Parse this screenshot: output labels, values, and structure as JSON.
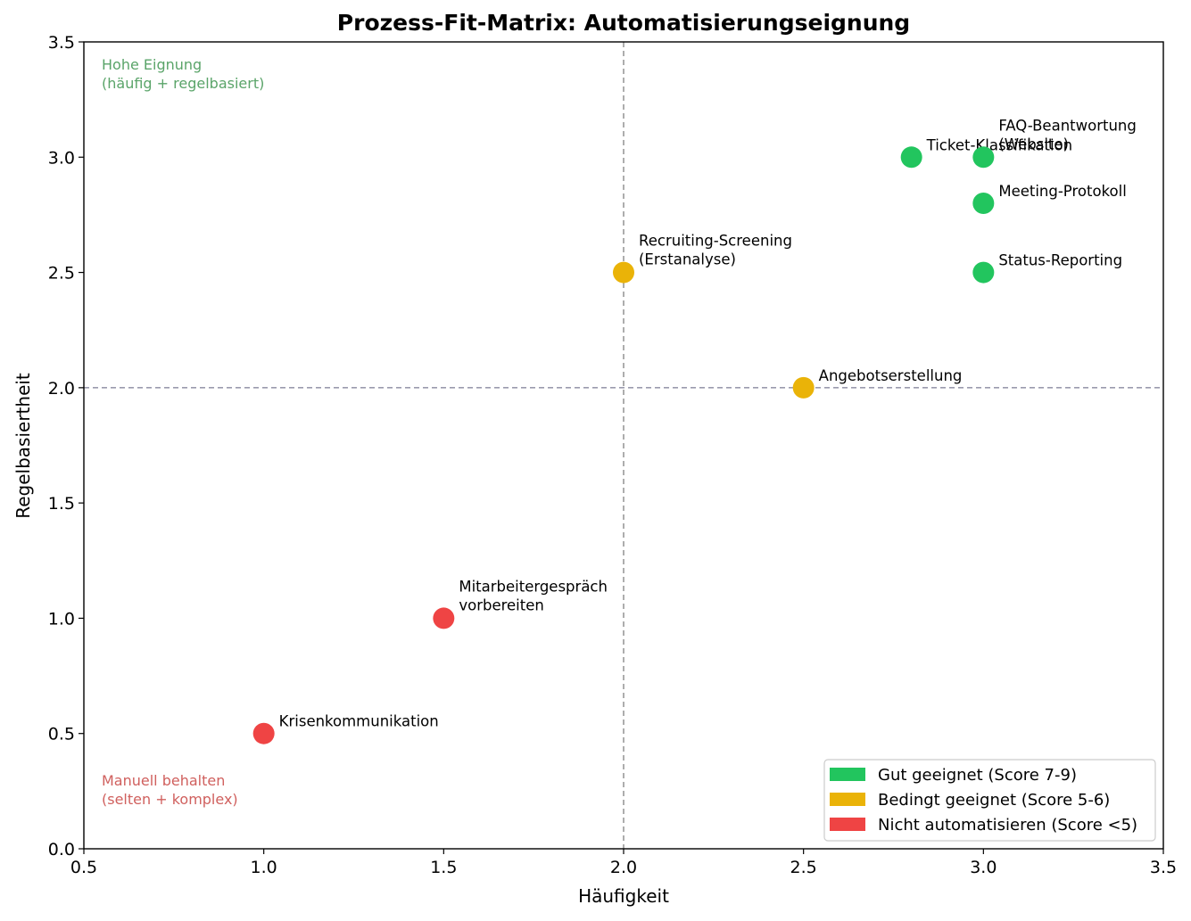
{
  "chart_data": {
    "type": "scatter",
    "title": "Prozess-Fit-Matrix: Automatisierungseignung",
    "xlabel": "Häufigkeit",
    "ylabel": "Regelbasiertheit",
    "xlim": [
      0.5,
      3.5
    ],
    "ylim": [
      0.0,
      3.5
    ],
    "xticks": [
      "0.5",
      "1.0",
      "1.5",
      "2.0",
      "2.5",
      "3.0",
      "3.5"
    ],
    "yticks": [
      "0.0",
      "0.5",
      "1.0",
      "1.5",
      "2.0",
      "2.5",
      "3.0",
      "3.5"
    ],
    "grid": false,
    "reference_lines": {
      "x": 2.0,
      "y": 2.0,
      "style": "dashed"
    },
    "legend_position": "lower-right",
    "categories": [
      {
        "key": "good",
        "name": "Gut geeignet (Score 7-9)",
        "color": "#22c55e"
      },
      {
        "key": "medium",
        "name": "Bedingt geeignet (Score 5-6)",
        "color": "#eab308"
      },
      {
        "key": "bad",
        "name": "Nicht automatisieren (Score <5)",
        "color": "#ef4444"
      }
    ],
    "points": [
      {
        "label": [
          "Ticket-Klassifikation"
        ],
        "x": 2.8,
        "y": 3.0,
        "category": "good"
      },
      {
        "label": [
          "FAQ-Beantwortung",
          "(Website)"
        ],
        "x": 3.0,
        "y": 3.0,
        "category": "good"
      },
      {
        "label": [
          "Meeting-Protokoll"
        ],
        "x": 3.0,
        "y": 2.8,
        "category": "good"
      },
      {
        "label": [
          "Status-Reporting"
        ],
        "x": 3.0,
        "y": 2.5,
        "category": "good"
      },
      {
        "label": [
          "Recruiting-Screening",
          "(Erstanalyse)"
        ],
        "x": 2.0,
        "y": 2.5,
        "category": "medium"
      },
      {
        "label": [
          "Angebotserstellung"
        ],
        "x": 2.5,
        "y": 2.0,
        "category": "medium"
      },
      {
        "label": [
          "Mitarbeitergespräch",
          "vorbereiten"
        ],
        "x": 1.5,
        "y": 1.0,
        "category": "bad"
      },
      {
        "label": [
          "Krisenkommunikation"
        ],
        "x": 1.0,
        "y": 0.5,
        "category": "bad"
      }
    ],
    "annotations": [
      {
        "lines": [
          "Hohe Eignung",
          "(häufig + regelbasiert)"
        ],
        "color": "#5aa469"
      },
      {
        "lines": [
          "Manuell behalten",
          "(selten + komplex)"
        ],
        "color": "#d0605e"
      }
    ]
  }
}
